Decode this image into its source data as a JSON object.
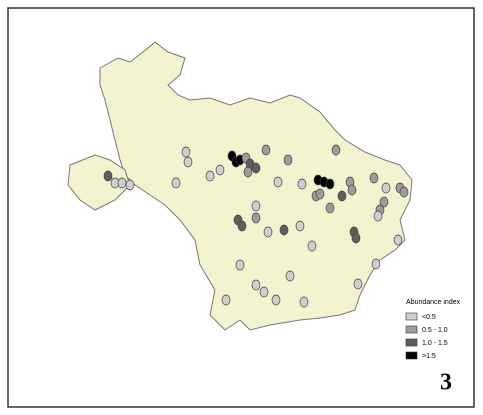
{
  "legend": {
    "title": "Abundance index",
    "items": [
      {
        "label": "<0.5",
        "color": "#cfcfcf"
      },
      {
        "label": "0.5 - 1.0",
        "color": "#9c9c9c"
      },
      {
        "label": "1.0 - 1.5",
        "color": "#5e5e5e"
      },
      {
        "label": ">1.5",
        "color": "#000000"
      }
    ]
  },
  "panel_label": "3"
}
